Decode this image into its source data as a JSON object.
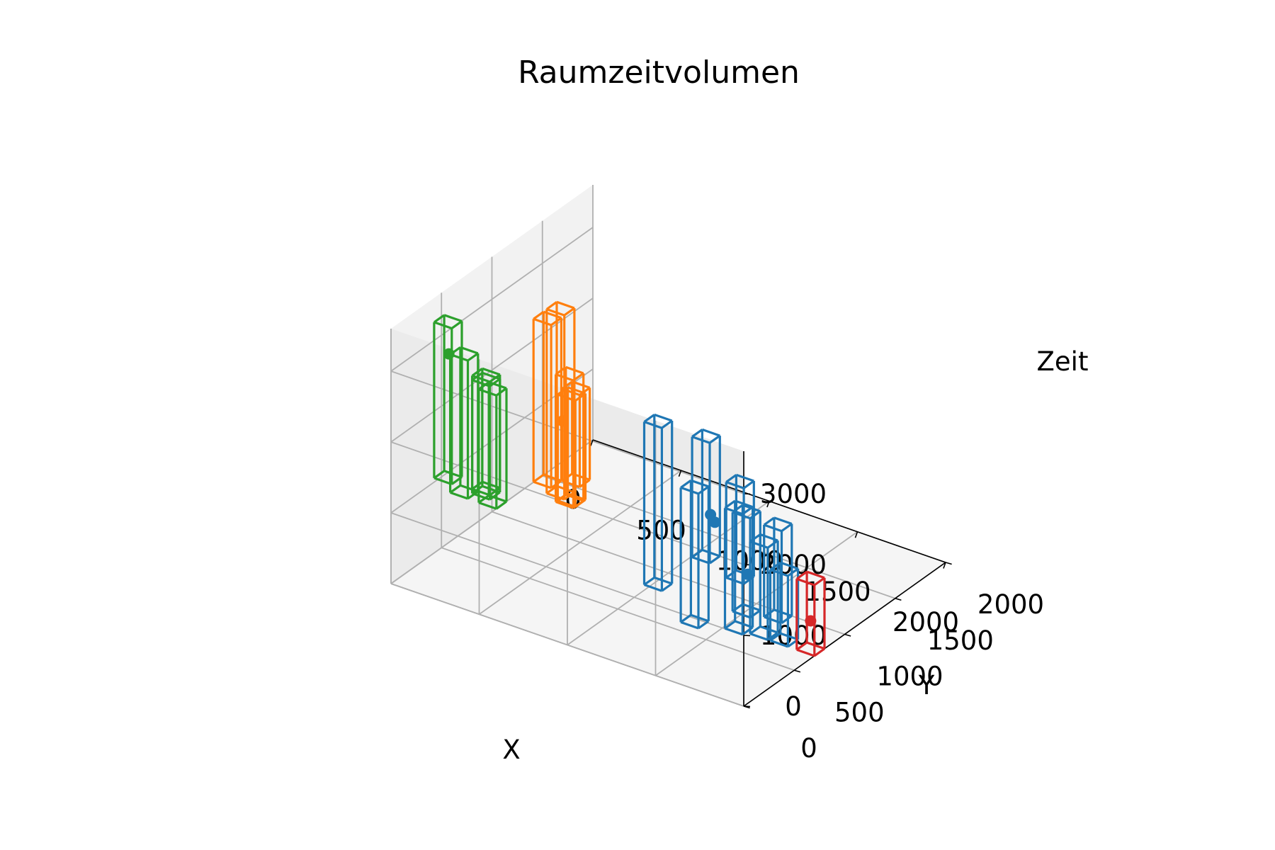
{
  "chart_data": {
    "type": "3d-box-wireframe",
    "title": "Raumzeitvolumen",
    "xlabel": "X",
    "ylabel": "Y",
    "zlabel": "Zeit",
    "xlim": [
      0,
      2000
    ],
    "ylim": [
      0,
      2000
    ],
    "zlim": [
      0,
      3600
    ],
    "xticks": [
      "0",
      "500",
      "1000",
      "1500",
      "2000"
    ],
    "yticks": [
      "0",
      "500",
      "1000",
      "1500",
      "2000"
    ],
    "zticks": [
      "0",
      "1000",
      "2000",
      "3000"
    ],
    "grid": true,
    "clusters": [
      {
        "color": "#ff7f0e",
        "boxes": [
          {
            "x": [
              110,
              210
            ],
            "y": [
              1350,
              1450
            ],
            "z": [
              0,
              2600
            ]
          },
          {
            "x": [
              150,
              250
            ],
            "y": [
              1150,
              1250
            ],
            "z": [
              400,
              2700
            ]
          },
          {
            "x": [
              190,
              290
            ],
            "y": [
              1300,
              1400
            ],
            "z": [
              0,
              1800
            ]
          },
          {
            "x": [
              230,
              330
            ],
            "y": [
              1250,
              1350
            ],
            "z": [
              100,
              1600
            ]
          },
          {
            "x": [
              140,
              240
            ],
            "y": [
              1450,
              1550
            ],
            "z": [
              100,
              1400
            ]
          }
        ],
        "points": [
          {
            "x": 200,
            "y": 1350,
            "z": 1100
          }
        ]
      },
      {
        "color": "#2ca02c",
        "boxes": [
          {
            "x": [
              130,
              230
            ],
            "y": [
              200,
              300
            ],
            "z": [
              1400,
              3600
            ]
          },
          {
            "x": [
              250,
              350
            ],
            "y": [
              150,
              250
            ],
            "z": [
              1350,
              3300
            ]
          },
          {
            "x": [
              280,
              380
            ],
            "y": [
              380,
              480
            ],
            "z": [
              1000,
              2600
            ]
          },
          {
            "x": [
              220,
              320
            ],
            "y": [
              420,
              520
            ],
            "z": [
              1100,
              2700
            ]
          },
          {
            "x": [
              300,
              400
            ],
            "y": [
              280,
              380
            ],
            "z": [
              1250,
              2850
            ]
          }
        ],
        "points": [
          {
            "x": 185,
            "y": 250,
            "z": 3150
          }
        ]
      },
      {
        "color": "#1f77b4",
        "boxes": [
          {
            "x": [
              1350,
              1450
            ],
            "y": [
              150,
              250
            ],
            "z": [
              1000,
              3300
            ]
          },
          {
            "x": [
              1650,
              1750
            ],
            "y": [
              100,
              200
            ],
            "z": [
              1700,
              3400
            ]
          },
          {
            "x": [
              1500,
              1600
            ],
            "y": [
              250,
              350
            ],
            "z": [
              500,
              2400
            ]
          },
          {
            "x": [
              1700,
              1800
            ],
            "y": [
              350,
              450
            ],
            "z": [
              1200,
              2550
            ]
          },
          {
            "x": [
              1750,
              1850
            ],
            "y": [
              500,
              600
            ],
            "z": [
              300,
              1600
            ]
          },
          {
            "x": [
              1550,
              1650
            ],
            "y": [
              600,
              700
            ],
            "z": [
              100,
              1800
            ]
          },
          {
            "x": [
              1450,
              1550
            ],
            "y": [
              850,
              950
            ],
            "z": [
              0,
              1400
            ]
          },
          {
            "x": [
              1600,
              1700
            ],
            "y": [
              900,
              1000
            ],
            "z": [
              0,
              1300
            ]
          },
          {
            "x": [
              1750,
              1850
            ],
            "y": [
              700,
              800
            ],
            "z": [
              0,
              1000
            ]
          }
        ],
        "points": [
          {
            "x": 1720,
            "y": 160,
            "z": 2300
          },
          {
            "x": 1550,
            "y": 500,
            "z": 1700
          },
          {
            "x": 1650,
            "y": 650,
            "z": 900
          }
        ]
      },
      {
        "color": "#d62728",
        "boxes": [
          {
            "x": [
              1900,
              2000
            ],
            "y": [
              700,
              800
            ],
            "z": [
              0,
              1000
            ]
          }
        ],
        "points": [
          {
            "x": 1950,
            "y": 750,
            "z": 400
          }
        ]
      }
    ]
  }
}
